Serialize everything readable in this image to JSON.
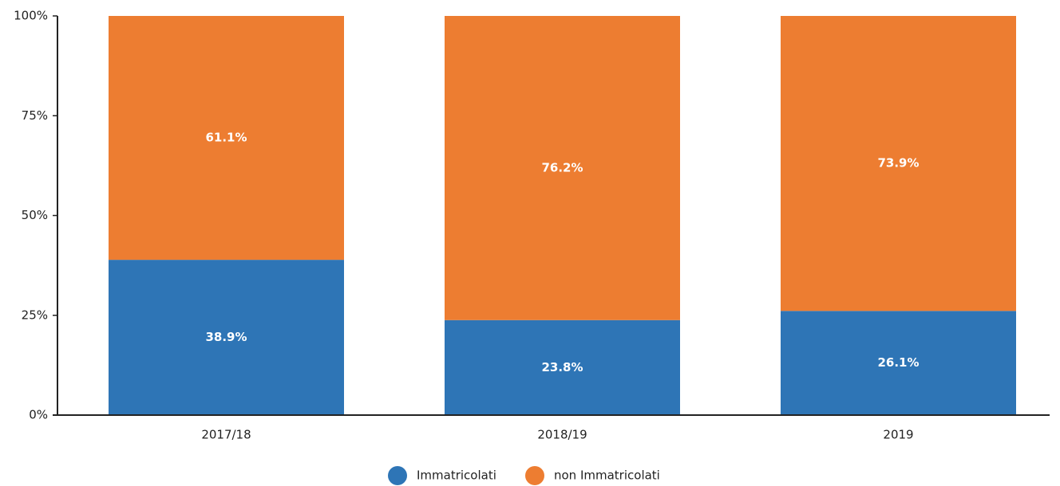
{
  "chart_data": {
    "type": "stacked_bar",
    "categories": [
      "2017/18",
      "2018/19",
      "2019"
    ],
    "series": [
      {
        "name": "Immatricolati",
        "color": "#2e75b6",
        "values": [
          38.9,
          23.8,
          26.1
        ],
        "value_labels": [
          "38.9%",
          "23.8%",
          "26.1%"
        ]
      },
      {
        "name": "non Immatricolati",
        "color": "#ed7d31",
        "values": [
          61.1,
          76.2,
          73.9
        ],
        "value_labels": [
          "61.1%",
          "76.2%",
          "73.9%"
        ]
      }
    ],
    "ylim": [
      0,
      100
    ],
    "yticks": [
      {
        "value": 0,
        "label": "0%"
      },
      {
        "value": 25,
        "label": "25%"
      },
      {
        "value": 50,
        "label": "50%"
      },
      {
        "value": 75,
        "label": "75%"
      },
      {
        "value": 100,
        "label": "100%"
      }
    ],
    "grid": false,
    "legend": "bottom"
  }
}
